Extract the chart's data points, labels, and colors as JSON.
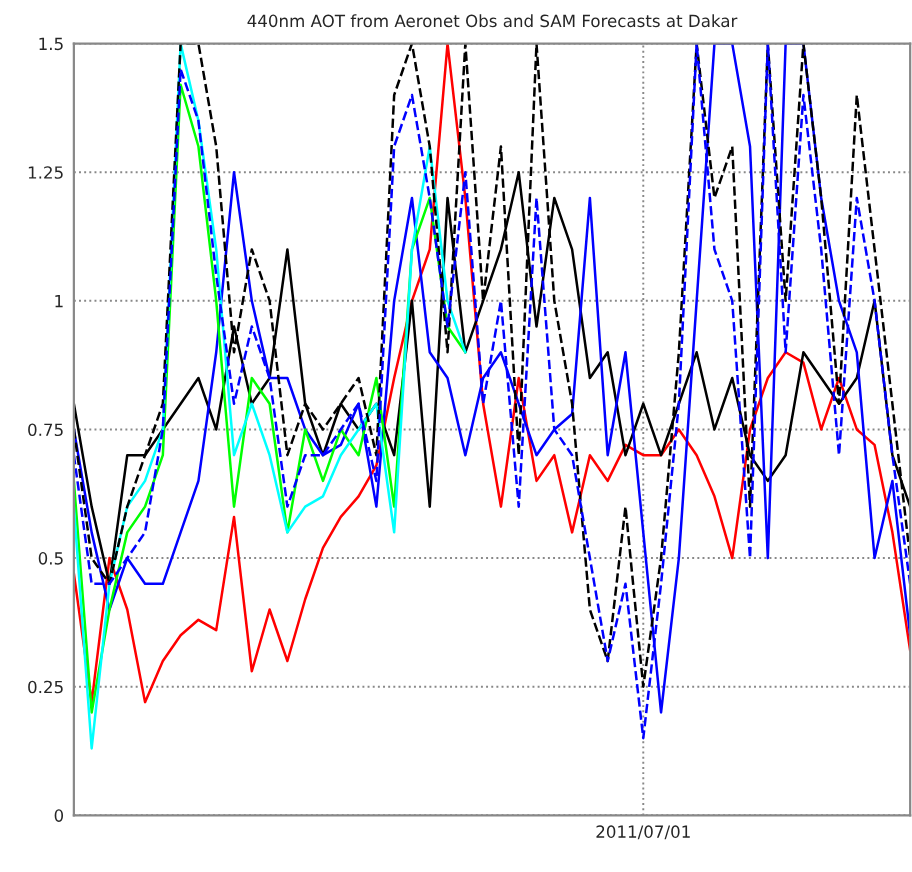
{
  "chart_data": {
    "type": "line",
    "title": "440nm AOT from Aeronet Obs and SAM Forecasts at Dakar",
    "categories": [
      null,
      null,
      null,
      null,
      null,
      null,
      null,
      null,
      null,
      null,
      null,
      null,
      null,
      null,
      null,
      null,
      null,
      null,
      null,
      null,
      null,
      null,
      null,
      null,
      null,
      null,
      null,
      null,
      null,
      null,
      null,
      null,
      "2011/07/01",
      null,
      null,
      null,
      null,
      null,
      null,
      null,
      null,
      null,
      null,
      null,
      null,
      null,
      null,
      null
    ],
    "ylim": [
      0,
      1.5
    ],
    "yticks": [
      0,
      0.25,
      0.5,
      0.75,
      1,
      1.25,
      1.5
    ],
    "grid": true,
    "legend": false,
    "series": [
      {
        "color": "#ff0000",
        "line_style": "solid",
        "values": [
          0.47,
          0.22,
          0.5,
          0.4,
          0.22,
          0.3,
          0.35,
          0.38,
          0.36,
          0.58,
          0.28,
          0.4,
          0.3,
          0.42,
          0.52,
          0.58,
          0.62,
          0.68,
          0.85,
          1.0,
          1.1,
          1.5,
          1.2,
          0.8,
          0.6,
          0.85,
          0.65,
          0.7,
          0.55,
          0.7,
          0.65,
          0.72,
          0.7,
          0.7,
          0.75,
          0.7,
          0.62,
          0.5,
          0.75,
          0.85,
          0.9,
          0.88,
          0.75,
          0.85,
          0.75,
          0.72,
          0.55,
          0.32
        ]
      },
      {
        "color": "#000000",
        "line_style": "solid",
        "values": [
          0.8,
          0.6,
          0.45,
          0.7,
          0.7,
          0.75,
          0.8,
          0.85,
          0.75,
          0.95,
          0.8,
          0.85,
          1.1,
          0.8,
          0.7,
          0.8,
          0.75,
          0.8,
          0.7,
          1.0,
          0.6,
          1.2,
          0.9,
          1.0,
          1.1,
          1.25,
          0.95,
          1.2,
          1.1,
          0.85,
          0.9,
          0.7,
          0.8,
          0.7,
          0.8,
          0.9,
          0.75,
          0.85,
          0.7,
          0.65,
          0.7,
          0.9,
          0.85,
          0.8,
          0.85,
          1.0,
          0.7,
          0.6
        ]
      },
      {
        "color": "#0000ff",
        "line_style": "solid",
        "values": [
          0.75,
          0.55,
          0.4,
          0.5,
          0.45,
          0.45,
          0.55,
          0.65,
          0.9,
          1.25,
          1.0,
          0.85,
          0.85,
          0.75,
          0.7,
          0.72,
          0.8,
          0.6,
          1.0,
          1.2,
          0.9,
          0.85,
          0.7,
          0.85,
          0.9,
          0.8,
          0.7,
          0.75,
          0.78,
          1.2,
          0.7,
          0.9,
          0.55,
          0.2,
          0.5,
          1.0,
          1.5,
          1.5,
          1.3,
          0.5,
          1.5,
          1.5,
          1.2,
          1.0,
          0.9,
          0.5,
          0.65,
          0.35
        ]
      },
      {
        "color": "#00ff00",
        "line_style": "solid",
        "values": [
          0.65,
          0.2,
          0.4,
          0.55,
          0.6,
          0.7,
          1.42,
          1.3,
          1.0,
          0.6,
          0.85,
          0.8,
          0.55,
          0.75,
          0.65,
          0.75,
          0.7,
          0.85,
          0.6,
          1.1,
          1.2,
          0.95,
          0.9,
          null,
          null,
          null,
          null,
          null,
          null,
          null,
          null,
          null,
          null,
          null,
          null,
          null,
          null,
          null,
          null,
          null,
          null,
          null,
          null,
          null,
          null,
          null,
          null,
          null
        ]
      },
      {
        "color": "#00ffff",
        "line_style": "solid",
        "values": [
          0.6,
          0.13,
          0.45,
          0.6,
          0.65,
          0.75,
          1.5,
          1.35,
          1.1,
          0.7,
          0.8,
          0.7,
          0.55,
          0.6,
          0.62,
          0.7,
          0.75,
          0.8,
          0.55,
          1.1,
          1.3,
          1.0,
          0.9,
          null,
          null,
          null,
          null,
          null,
          null,
          null,
          null,
          null,
          null,
          null,
          null,
          null,
          null,
          null,
          null,
          null,
          null,
          null,
          null,
          null,
          null,
          null,
          null,
          null
        ]
      },
      {
        "color": "#000000",
        "line_style": "dashed",
        "values": [
          0.75,
          0.5,
          0.45,
          0.6,
          0.7,
          0.8,
          1.5,
          1.5,
          1.3,
          0.9,
          1.1,
          1.0,
          0.7,
          0.8,
          0.75,
          0.8,
          0.85,
          0.7,
          1.4,
          1.5,
          1.3,
          0.9,
          1.5,
          1.0,
          1.3,
          0.7,
          1.5,
          1.0,
          0.8,
          0.4,
          0.3,
          0.6,
          0.25,
          0.5,
          0.9,
          1.5,
          1.2,
          1.3,
          0.6,
          1.5,
          1.0,
          1.5,
          1.2,
          0.8,
          1.4,
          1.1,
          0.8,
          0.5
        ]
      },
      {
        "color": "#0000ff",
        "line_style": "dashed",
        "values": [
          0.7,
          0.45,
          0.45,
          0.5,
          0.55,
          0.75,
          1.45,
          1.35,
          1.05,
          0.8,
          0.95,
          0.85,
          0.6,
          0.7,
          0.7,
          0.75,
          0.8,
          0.65,
          1.3,
          1.4,
          1.2,
          0.95,
          1.25,
          0.8,
          1.0,
          0.6,
          1.2,
          0.75,
          0.7,
          0.5,
          0.3,
          0.45,
          0.15,
          0.45,
          0.8,
          1.5,
          1.1,
          1.0,
          0.5,
          1.5,
          0.9,
          1.4,
          1.1,
          0.7,
          1.2,
          1.0,
          0.7,
          0.45
        ]
      }
    ]
  }
}
